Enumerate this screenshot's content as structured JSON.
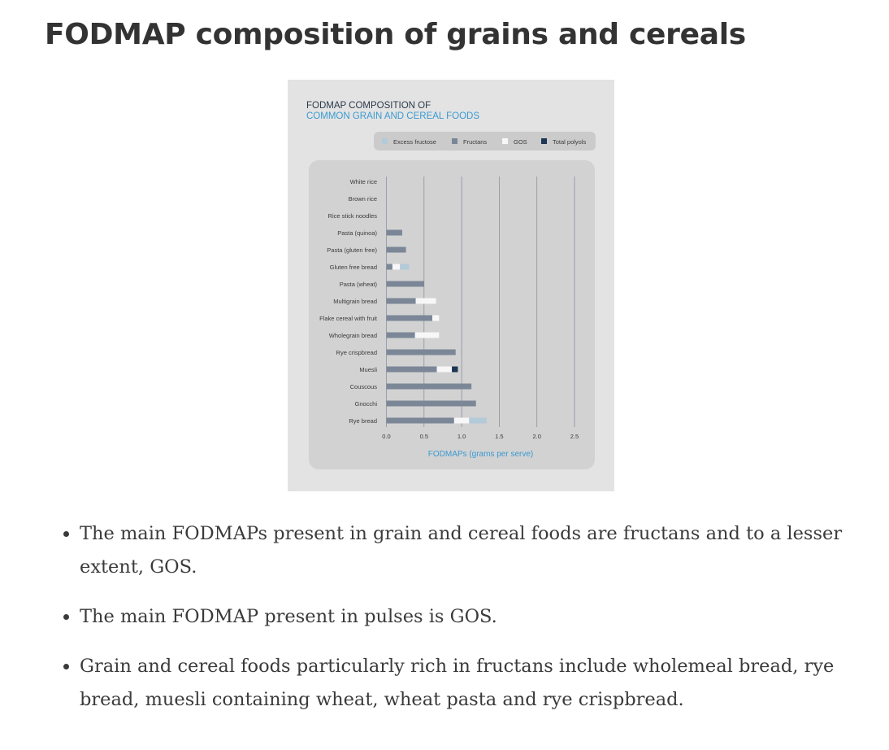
{
  "page": {
    "title": "FODMAP composition of grains and cereals"
  },
  "bullets": [
    "The main FODMAPs present in grain and cereal foods are fructans and to a lesser extent, GOS.",
    "The main FODMAP present in pulses is GOS.",
    "Grain and cereal foods particularly rich in fructans include wholemeal bread, rye bread, muesli containing wheat, wheat pasta and rye crispbread."
  ],
  "colors": {
    "card_bg": "#e3e3e3",
    "plot_bg": "#d2d2d2",
    "legend_bg": "#cbcbcb",
    "title_dark": "#2b3a4a",
    "title_blue": "#3a9ad1",
    "excess_fructose": "#b3cad8",
    "fructans": "#7b8797",
    "gos": "#f7f7f7",
    "total_polyols": "#1c3653"
  },
  "chart_data": {
    "type": "bar",
    "orientation": "horizontal",
    "stacked": true,
    "title_line1": "FODMAP COMPOSITION OF",
    "title_line2": "COMMON GRAIN AND CEREAL FOODS",
    "xlabel": "FODMAPs (grams per serve)",
    "ylabel": "",
    "xlim": [
      0,
      2.5
    ],
    "xticks": [
      "0.0",
      "0.5",
      "1.0",
      "1.5",
      "2.0",
      "2.5"
    ],
    "grid": "vertical",
    "legend_position": "top-right",
    "categories": [
      "White rice",
      "Brown rice",
      "Rice stick noodles",
      "Pasta (quinoa)",
      "Pasta (gluten free)",
      "Gluten free bread",
      "Pasta (wheat)",
      "Multigrain bread",
      "Flake cereal with fruit",
      "Wholegrain bread",
      "Rye crispbread",
      "Muesli",
      "Couscous",
      "Gnocchi",
      "Rye bread"
    ],
    "series": [
      {
        "name": "Fructans",
        "color_key": "fructans",
        "values": [
          0,
          0,
          0,
          0.21,
          0.26,
          0.08,
          0.5,
          0.39,
          0.61,
          0.38,
          0.92,
          0.67,
          1.13,
          1.19,
          0.9
        ]
      },
      {
        "name": "GOS",
        "color_key": "gos",
        "values": [
          0,
          0,
          0,
          0,
          0,
          0.1,
          0,
          0.27,
          0.09,
          0.32,
          0,
          0.2,
          0,
          0,
          0.2
        ]
      },
      {
        "name": "Total polyols",
        "color_key": "total_polyols",
        "values": [
          0,
          0,
          0,
          0,
          0,
          0,
          0,
          0,
          0,
          0,
          0,
          0.08,
          0,
          0,
          0
        ]
      },
      {
        "name": "Excess fructose",
        "color_key": "excess_fructose",
        "values": [
          0,
          0,
          0,
          0,
          0,
          0.12,
          0,
          0,
          0,
          0,
          0,
          0,
          0,
          0,
          0.23
        ]
      }
    ],
    "legend": [
      "Excess fructose",
      "Fructans",
      "GOS",
      "Total polyols"
    ],
    "legend_color_keys": [
      "excess_fructose",
      "fructans",
      "gos",
      "total_polyols"
    ]
  }
}
